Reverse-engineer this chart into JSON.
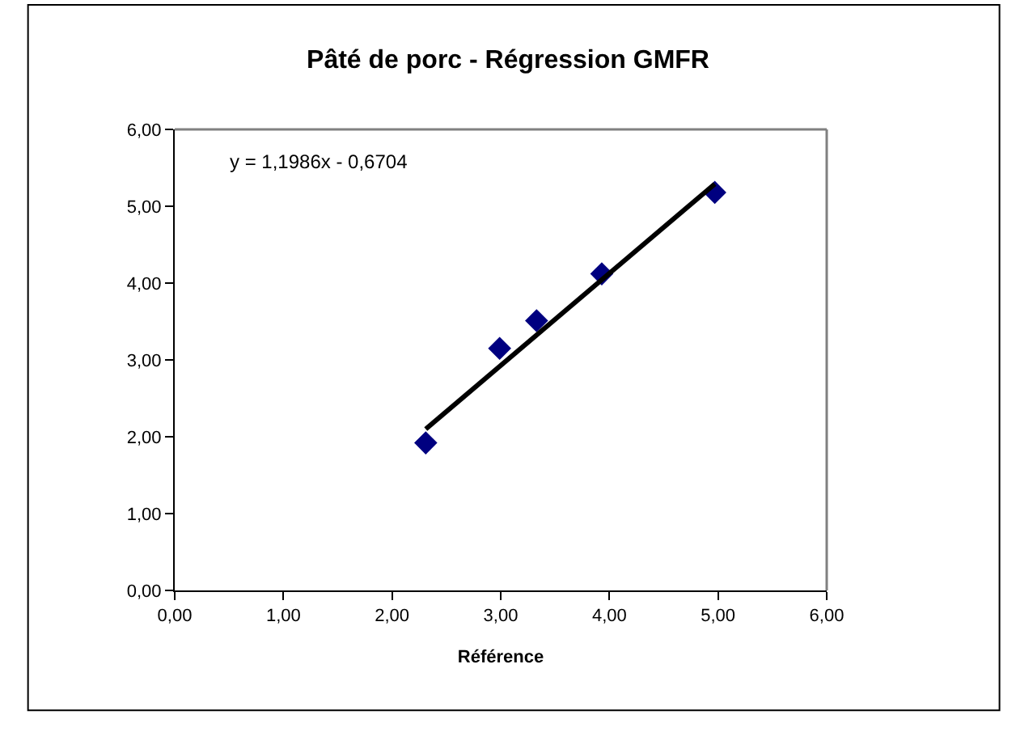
{
  "chart_data": {
    "type": "scatter",
    "title": "Pâté de porc - Régression GMFR",
    "xlabel": "Référence",
    "annotations": [
      "y = 1,1986x - 0,6704"
    ],
    "series": [
      {
        "color": "#000080",
        "marker": "diamond",
        "x": [
          2.31,
          2.99,
          3.33,
          3.93,
          4.97
        ],
        "values": [
          1.92,
          3.15,
          3.51,
          4.12,
          5.18
        ]
      },
      {
        "type": "line",
        "color": "#000000",
        "marker": "none",
        "line_style": "solid",
        "x": [
          2.31,
          4.97
        ],
        "values": [
          2.1,
          5.29
        ]
      }
    ],
    "xlim": [
      0,
      6
    ],
    "ylim": [
      0,
      6
    ],
    "xticks": [
      {
        "value": 0,
        "label": "0,00"
      },
      {
        "value": 1,
        "label": "1,00"
      },
      {
        "value": 2,
        "label": "2,00"
      },
      {
        "value": 3,
        "label": "3,00"
      },
      {
        "value": 4,
        "label": "4,00"
      },
      {
        "value": 5,
        "label": "5,00"
      },
      {
        "value": 6,
        "label": "6,00"
      }
    ],
    "yticks": [
      {
        "value": 0,
        "label": "0,00"
      },
      {
        "value": 1,
        "label": "1,00"
      },
      {
        "value": 2,
        "label": "2,00"
      },
      {
        "value": 3,
        "label": "3,00"
      },
      {
        "value": 4,
        "label": "4,00"
      },
      {
        "value": 5,
        "label": "5,00"
      },
      {
        "value": 6,
        "label": "6,00"
      }
    ]
  }
}
